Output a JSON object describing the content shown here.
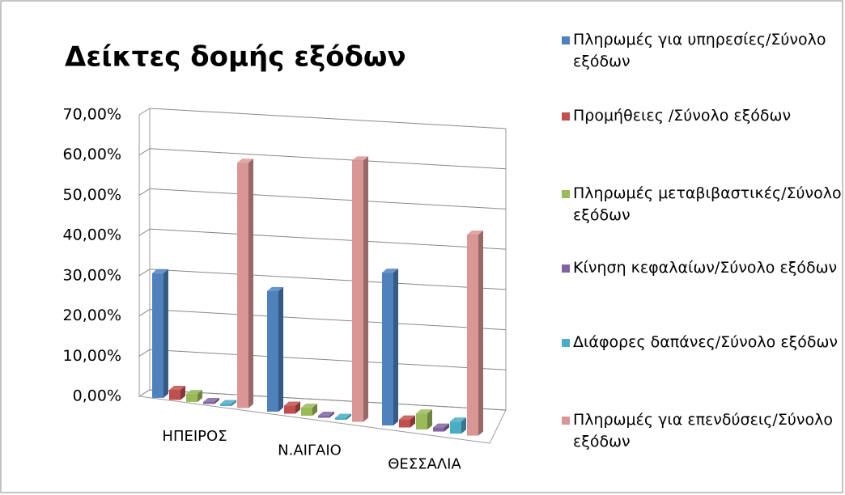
{
  "chart_data": {
    "type": "bar3d",
    "title": "Δείκτες δομής εξόδων",
    "categories": [
      "ΗΠΕΙΡΟΣ",
      "Ν.ΑΙΓΑΙΟ",
      "ΘΕΣΣΑΛΙΑ"
    ],
    "series": [
      {
        "name": "Πληρωμές για υπηρεσίες/Σύνολο εξόδων",
        "color": "#4f81bd",
        "values": [
          31,
          30,
          38
        ]
      },
      {
        "name": "Προμήθειες /Σύνολο εξόδων",
        "color": "#c0504d",
        "values": [
          2.5,
          2,
          2
        ]
      },
      {
        "name": "Πληρωμές μεταβιβαστικές/Σύνολο εξόδων",
        "color": "#9bbb59",
        "values": [
          2,
          2,
          4
        ]
      },
      {
        "name": "Κίνηση κεφαλαίων/Σύνολο εξόδων",
        "color": "#8064a2",
        "values": [
          0.5,
          0.5,
          1
        ]
      },
      {
        "name": "Διάφορες δαπάνες/Σύνολο εξόδων",
        "color": "#4bacc6",
        "values": [
          0.5,
          0.5,
          3
        ]
      },
      {
        "name": "Πληρωμές για επενδύσεις/Σύνολο εξόδων",
        "color": "#d99694",
        "values": [
          61,
          65,
          50
        ]
      }
    ],
    "ylim": [
      0,
      70
    ],
    "yticks": [
      {
        "value": 0,
        "label": "0,00%"
      },
      {
        "value": 10,
        "label": "10,00%"
      },
      {
        "value": 20,
        "label": "20,00%"
      },
      {
        "value": 30,
        "label": "30,00%"
      },
      {
        "value": 40,
        "label": "40,00%"
      },
      {
        "value": 50,
        "label": "50,00%"
      },
      {
        "value": 60,
        "label": "60,00%"
      },
      {
        "value": 70,
        "label": "70,00%"
      }
    ],
    "grid": true
  }
}
